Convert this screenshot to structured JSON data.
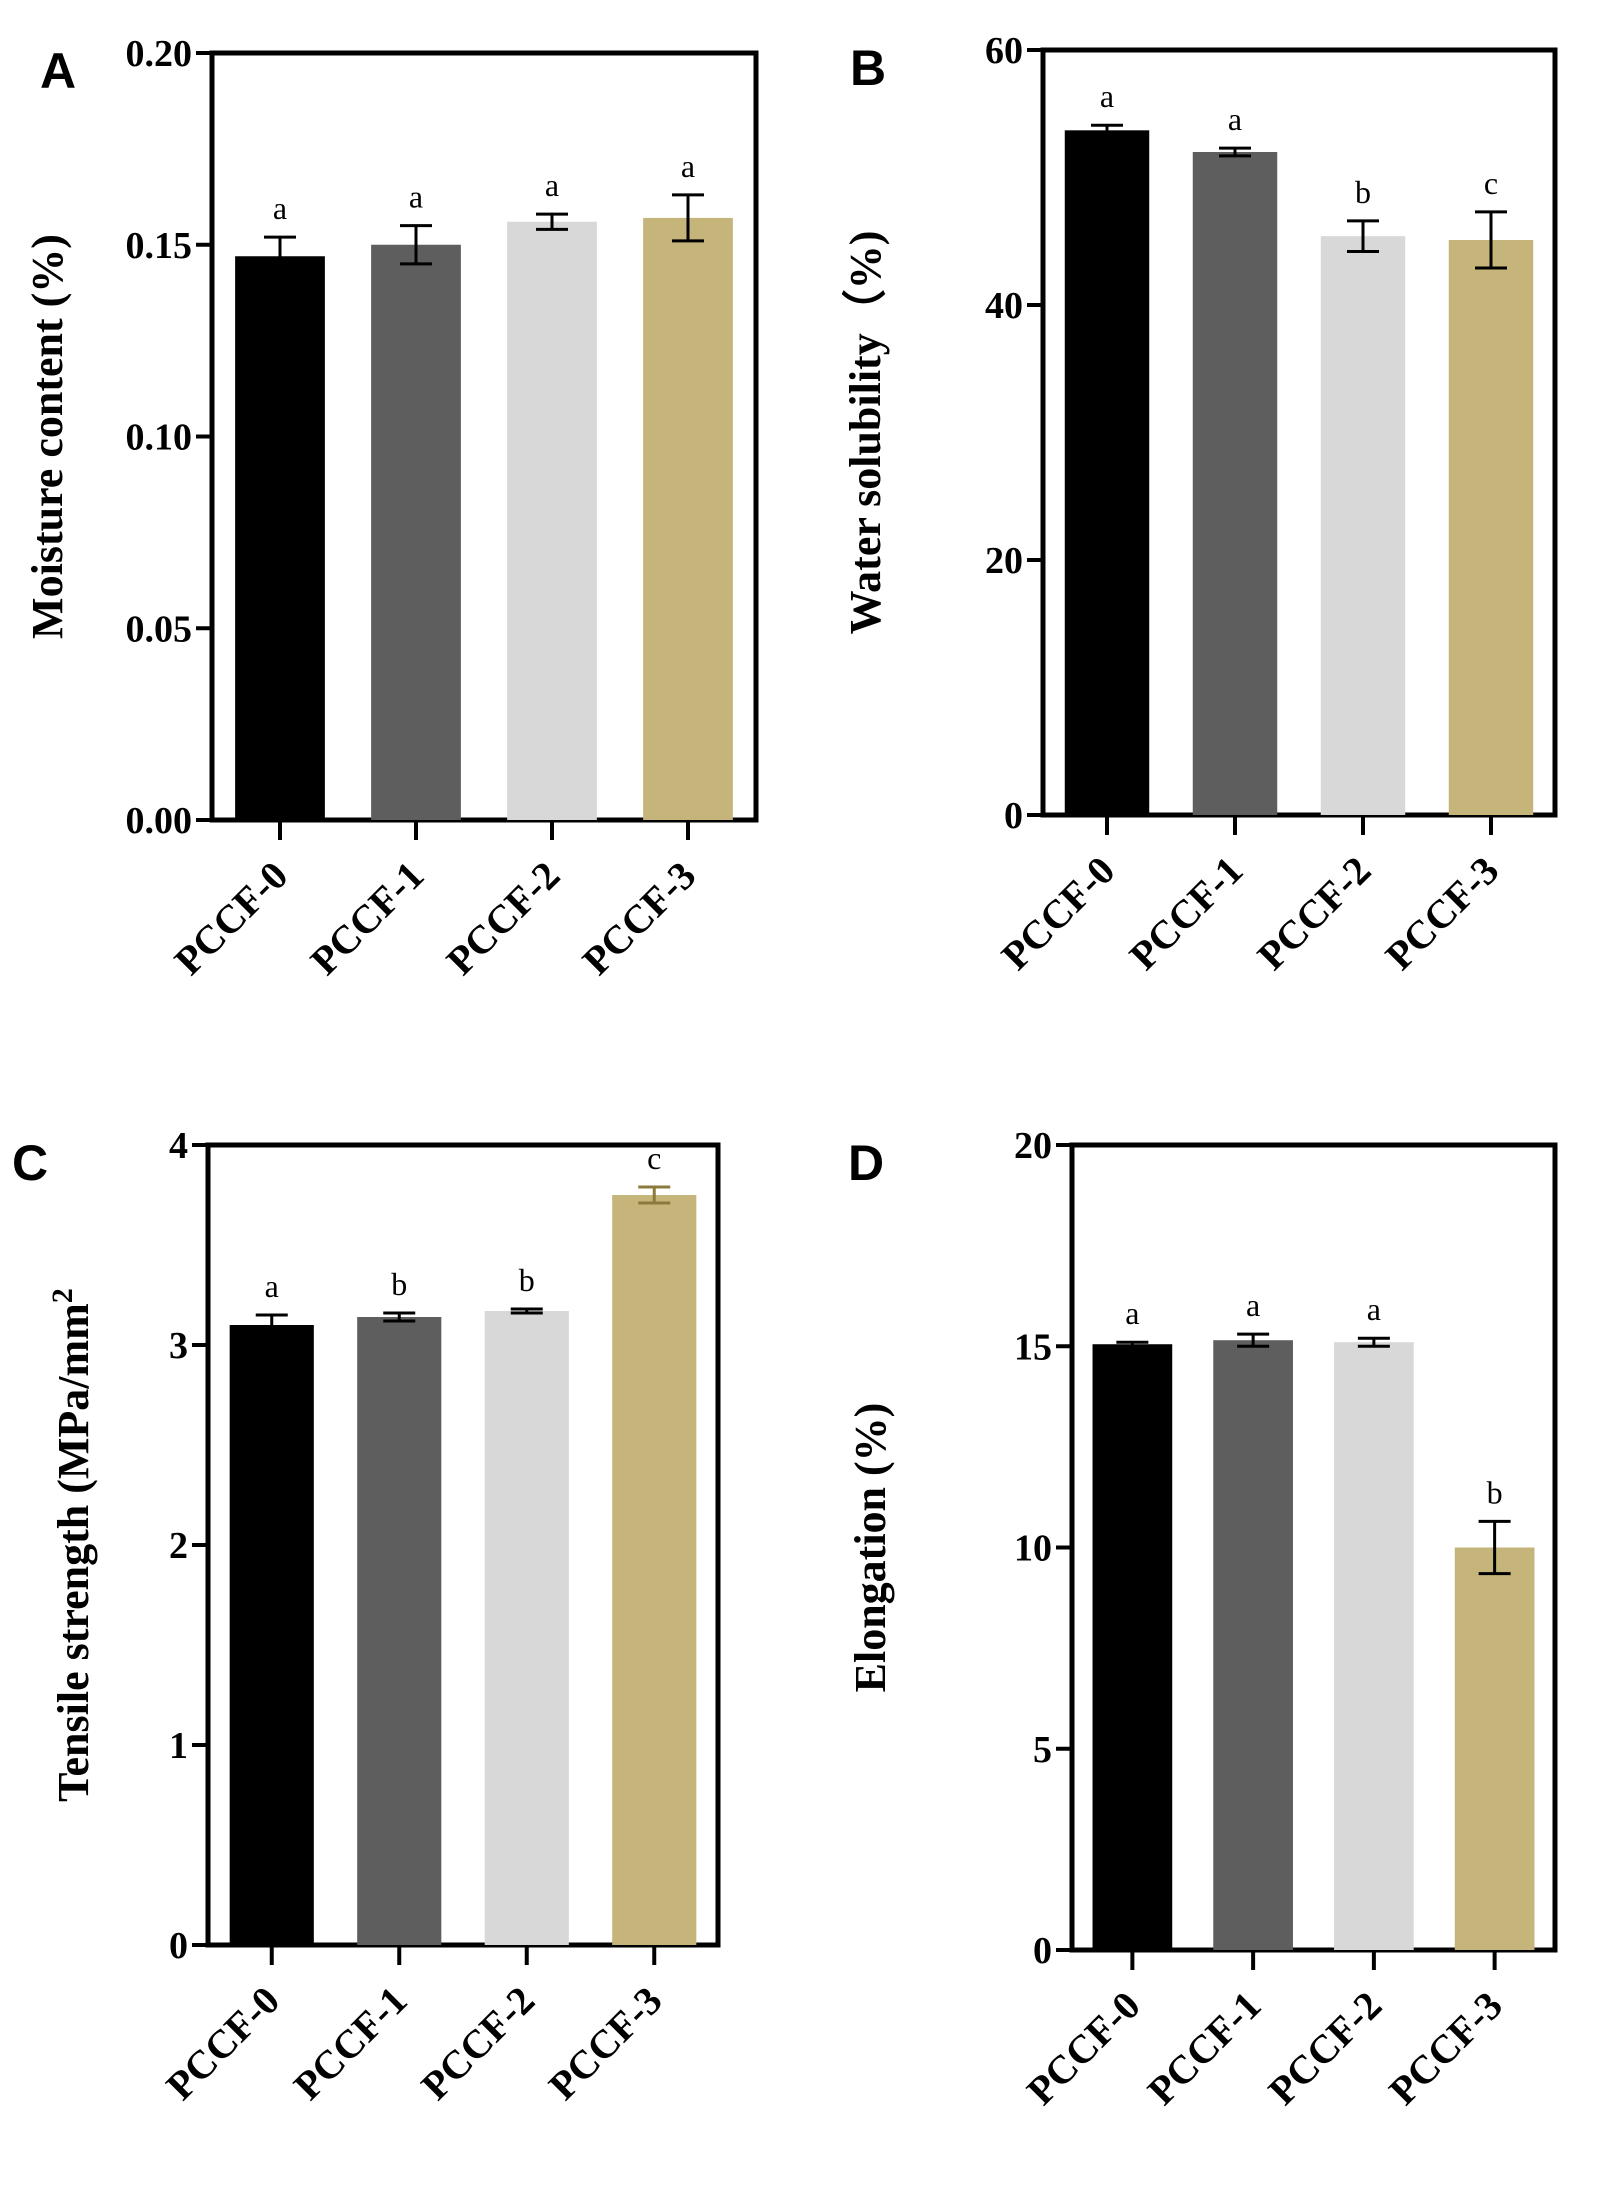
{
  "colors": {
    "PCCF-0": "#000000",
    "PCCF-1": "#5e5e5e",
    "PCCF-2": "#d8d8d8",
    "PCCF-3": "#c6b57a",
    "err_PCCF-3_C": "#8c7a3c"
  },
  "chart_data": [
    {
      "panel": "A",
      "type": "bar",
      "categories": [
        "PCCF-0",
        "PCCF-1",
        "PCCF-2",
        "PCCF-3"
      ],
      "values": [
        0.147,
        0.15,
        0.156,
        0.157
      ],
      "errors": [
        0.005,
        0.005,
        0.002,
        0.006
      ],
      "significance": [
        "a",
        "a",
        "a",
        "a"
      ],
      "ylabel": "Moisture content (%)",
      "ylim": [
        0,
        0.2
      ],
      "yticks": [
        "0.00",
        "0.05",
        "0.10",
        "0.15",
        "0.20"
      ],
      "ytick_values": [
        0,
        0.05,
        0.1,
        0.15,
        0.2
      ]
    },
    {
      "panel": "B",
      "type": "bar",
      "categories": [
        "PCCF-0",
        "PCCF-1",
        "PCCF-2",
        "PCCF-3"
      ],
      "values": [
        53.7,
        52.0,
        45.4,
        45.1
      ],
      "errors": [
        0.4,
        0.3,
        1.2,
        2.2
      ],
      "significance": [
        "a",
        "a",
        "b",
        "c"
      ],
      "ylabel": "Water solubility（%)",
      "ylim": [
        0,
        60
      ],
      "yticks": [
        "0",
        "20",
        "40",
        "60"
      ],
      "ytick_values": [
        0,
        20,
        40,
        60
      ]
    },
    {
      "panel": "C",
      "type": "bar",
      "categories": [
        "PCCF-0",
        "PCCF-1",
        "PCCF-2",
        "PCCF-3"
      ],
      "values": [
        3.1,
        3.14,
        3.17,
        3.75
      ],
      "errors": [
        0.05,
        0.02,
        0.01,
        0.04
      ],
      "significance": [
        "a",
        "b",
        "b",
        "c"
      ],
      "ylabel": "Tensile strength (MPa/mm",
      "ylabel_sup": "2",
      "ylim": [
        0,
        4
      ],
      "yticks": [
        "0",
        "1",
        "2",
        "3",
        "4"
      ],
      "ytick_values": [
        0,
        1,
        2,
        3,
        4
      ]
    },
    {
      "panel": "D",
      "type": "bar",
      "categories": [
        "PCCF-0",
        "PCCF-1",
        "PCCF-2",
        "PCCF-3"
      ],
      "values": [
        15.05,
        15.15,
        15.1,
        10.0
      ],
      "errors": [
        0.05,
        0.15,
        0.1,
        0.65
      ],
      "significance": [
        "a",
        "a",
        "a",
        "b"
      ],
      "ylabel": "Elongation (%)",
      "ylim": [
        0,
        20
      ],
      "yticks": [
        "0",
        "5",
        "10",
        "15",
        "20"
      ],
      "ytick_values": [
        0,
        5,
        10,
        15,
        20
      ]
    }
  ]
}
